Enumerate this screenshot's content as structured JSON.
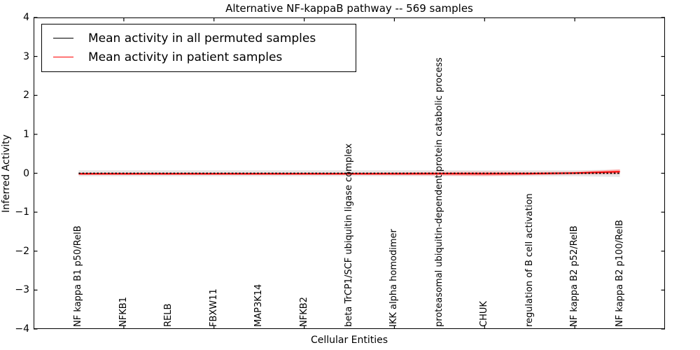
{
  "title": "Alternative NF-kappaB pathway -- 569 samples",
  "chart_data": {
    "type": "line",
    "title": "Alternative NF-kappaB pathway -- 569 samples",
    "xlabel": "Cellular Entities",
    "ylabel": "Inferred Activity",
    "ylim": [
      -4,
      4
    ],
    "xlim_categories": [
      -1,
      13
    ],
    "grid": false,
    "legend_position": "upper left",
    "ytick_labels": [
      "4",
      "3",
      "2",
      "1",
      "0",
      "−1",
      "−2",
      "−3",
      "−4"
    ],
    "ytick_values": [
      4,
      3,
      2,
      1,
      0,
      -1,
      -2,
      -3,
      -4
    ],
    "top_bottom_tick_indices": [
      1,
      3,
      5,
      7,
      9,
      11
    ],
    "categories": [
      "NF kappa B1 p50/RelB",
      "NFKB1",
      "RELB",
      "FBXW11",
      "MAP3K14",
      "NFKB2",
      "beta TrCP1/SCF ubiquitin ligase complex",
      "IKK alpha homodimer",
      "proteasomal ubiquitin-dependent protein catabolic process",
      "CHUK",
      "regulation of B cell activation",
      "NF kappa B2 p52/RelB",
      "NF kappa B2 p100/RelB"
    ],
    "series": [
      {
        "name": "Mean activity in all permuted samples",
        "color": "#000000",
        "line_style": "dashed",
        "values": [
          0.0,
          0.0,
          0.0,
          0.0,
          0.0,
          0.0,
          0.0,
          0.0,
          0.0,
          0.0,
          0.0,
          0.0,
          0.0
        ],
        "band_color": "#e3e3e3",
        "band_opacity": 0.9,
        "band_half_widths": [
          0.075,
          0.075,
          0.075,
          0.075,
          0.075,
          0.075,
          0.075,
          0.075,
          0.075,
          0.075,
          0.075,
          0.075,
          0.095
        ]
      },
      {
        "name": "Mean activity in patient samples",
        "color": "#ff0000",
        "line_style": "solid",
        "values": [
          -0.015,
          -0.015,
          -0.015,
          -0.015,
          -0.015,
          -0.015,
          -0.015,
          -0.015,
          -0.01,
          -0.015,
          -0.01,
          0.005,
          0.04
        ],
        "band_color": "#ff9e9e",
        "band_opacity": 0.75,
        "band_half_widths": [
          0.03,
          0.03,
          0.03,
          0.03,
          0.03,
          0.03,
          0.03,
          0.035,
          0.045,
          0.055,
          0.04,
          0.035,
          0.06
        ]
      }
    ],
    "legend": [
      {
        "label": "Mean activity in all permuted samples",
        "color": "#000000"
      },
      {
        "label": "Mean activity in patient samples",
        "color": "#ff0000"
      }
    ]
  }
}
